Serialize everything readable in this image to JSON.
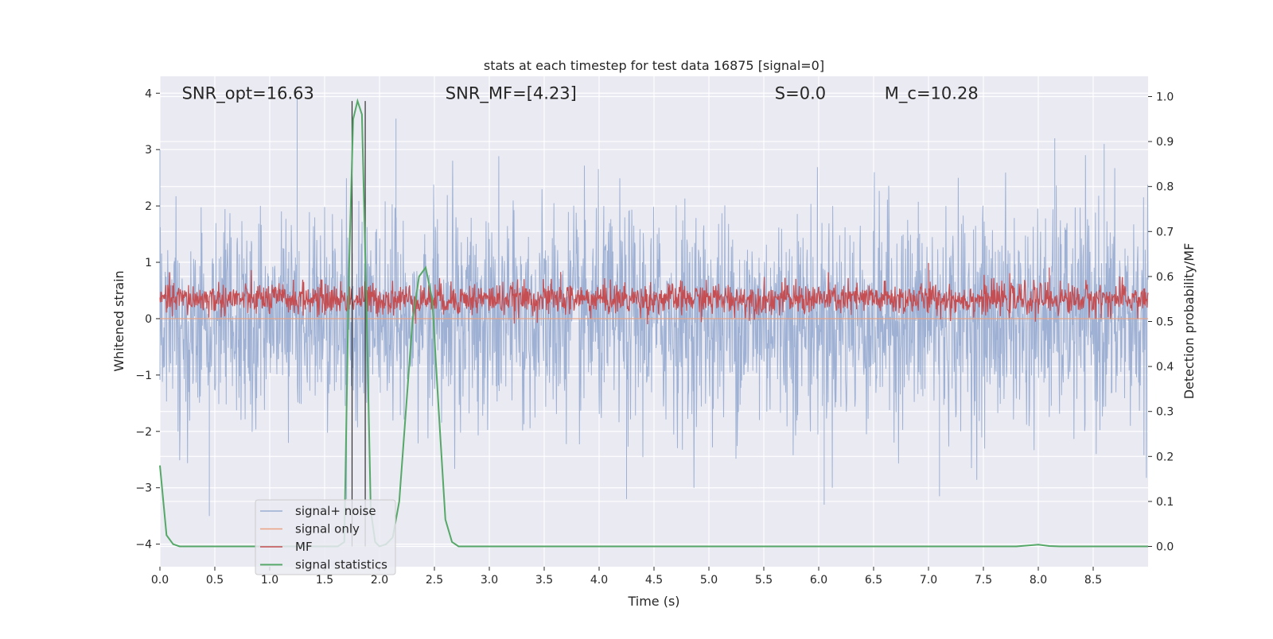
{
  "chart_data": {
    "type": "line",
    "title": "stats at each timestep for test data 16875 [signal=0]",
    "xlabel": "Time (s)",
    "ylabel": "Whitened strain",
    "ylabel_right": "Detection probability/MF",
    "xlim": [
      0.0,
      9.0
    ],
    "ylim": [
      -4.4,
      4.3
    ],
    "ylim_right": [
      -0.045,
      1.045
    ],
    "x_ticks": [
      0.0,
      0.5,
      1.0,
      1.5,
      2.0,
      2.5,
      3.0,
      3.5,
      4.0,
      4.5,
      5.0,
      5.5,
      6.0,
      6.5,
      7.0,
      7.5,
      8.0,
      8.5
    ],
    "x_tick_labels": [
      "0.0",
      "0.5",
      "1.0",
      "1.5",
      "2.0",
      "2.5",
      "3.0",
      "3.5",
      "4.0",
      "4.5",
      "5.0",
      "5.5",
      "6.0",
      "6.5",
      "7.0",
      "7.5",
      "8.0",
      "8.5"
    ],
    "y_ticks": [
      4,
      3,
      2,
      1,
      0,
      -1,
      -2,
      -3,
      -4
    ],
    "y_tick_labels": [
      "4",
      "3",
      "2",
      "1",
      "0",
      "−1",
      "−2",
      "−3",
      "−4"
    ],
    "y2_ticks": [
      1.0,
      0.9,
      0.8,
      0.7,
      0.6,
      0.5,
      0.4,
      0.3,
      0.2,
      0.1,
      0.0
    ],
    "y2_tick_labels": [
      "1.0",
      "0.9",
      "0.8",
      "0.7",
      "0.6",
      "0.5",
      "0.4",
      "0.3",
      "0.2",
      "0.1",
      "0.0"
    ],
    "grid": true,
    "legend_position": "lower-left",
    "annotations": [
      {
        "key": "snr_opt",
        "text": "SNR_opt=16.63",
        "x": 0.2
      },
      {
        "key": "snr_mf",
        "text": "SNR_MF=[4.23]",
        "x": 2.6
      },
      {
        "key": "s",
        "text": "S=0.0",
        "x": 5.6
      },
      {
        "key": "mc",
        "text": "M_c=10.28",
        "x": 6.6
      }
    ],
    "annotation_y": 4.0,
    "vlines": [
      1.75,
      1.87
    ],
    "vline_ylim_right": [
      0.0,
      0.99
    ],
    "series": [
      {
        "name": "signal+ noise",
        "color": "#9aaed2",
        "style": "noise",
        "sigma": 0.95,
        "notable_peaks": [
          [
            0.45,
            -3.5
          ],
          [
            1.25,
            3.9
          ],
          [
            2.15,
            3.55
          ],
          [
            4.25,
            -3.2
          ],
          [
            6.05,
            -3.3
          ],
          [
            7.1,
            -3.15
          ],
          [
            8.15,
            3.2
          ],
          [
            8.6,
            3.1
          ],
          [
            0.0,
            3.0
          ],
          [
            1.7,
            -3.2
          ]
        ]
      },
      {
        "name": "signal only",
        "color": "#e9a181",
        "style": "flat",
        "value": 0.0
      },
      {
        "name": "MF",
        "color": "#c44e52",
        "style": "noise",
        "mean_right": 0.55,
        "sigma_right": 0.018,
        "notable_peaks_right": [
          [
            1.72,
            0.62
          ],
          [
            3.65,
            0.61
          ],
          [
            7.0,
            0.63
          ],
          [
            8.1,
            0.62
          ]
        ]
      },
      {
        "name": "signal statistics",
        "color": "#55a868",
        "style": "line",
        "axis": "right",
        "x": [
          0.0,
          0.06,
          0.12,
          0.18,
          0.3,
          1.5,
          1.62,
          1.68,
          1.72,
          1.76,
          1.8,
          1.84,
          1.88,
          1.92,
          1.96,
          2.0,
          2.06,
          2.12,
          2.18,
          2.24,
          2.3,
          2.36,
          2.42,
          2.48,
          2.54,
          2.6,
          2.66,
          2.72,
          2.8,
          7.8,
          7.9,
          8.0,
          8.1,
          8.2,
          9.0
        ],
        "y": [
          0.18,
          0.025,
          0.005,
          0.0,
          0.0,
          0.0,
          0.0,
          0.01,
          0.6,
          0.95,
          0.99,
          0.96,
          0.55,
          0.08,
          0.01,
          0.0,
          0.005,
          0.02,
          0.1,
          0.3,
          0.5,
          0.6,
          0.62,
          0.55,
          0.3,
          0.06,
          0.01,
          0.0,
          0.0,
          0.0,
          0.002,
          0.004,
          0.001,
          0.0,
          0.0
        ]
      }
    ]
  }
}
